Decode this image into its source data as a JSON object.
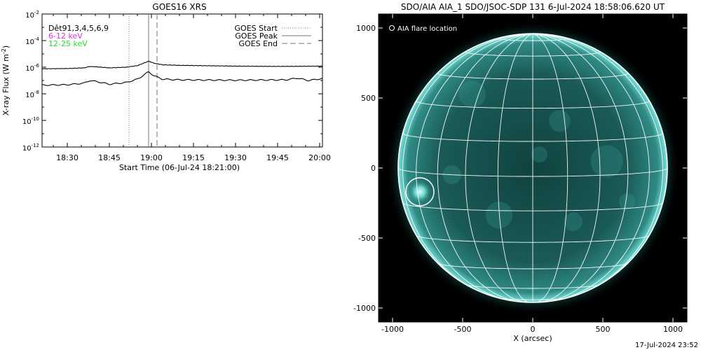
{
  "footer_timestamp": "17-Jul-2024 23:52",
  "chart_data": [
    {
      "type": "line",
      "title": "GOES16 XRS",
      "xlabel": "Start Time (06-Jul-24 18:21:00)",
      "ylabel": "X-ray Flux (W m",
      "ylabel_sup": "-2",
      "ylabel_close": ")",
      "y_scale": "log",
      "ylim": [
        "1e-12",
        "1e-2"
      ],
      "xlim": [
        "18:21",
        "20:01"
      ],
      "y_ticks": [
        {
          "value": -2,
          "base": "10",
          "exp": "-2"
        },
        {
          "value": -4,
          "base": "10",
          "exp": "-4"
        },
        {
          "value": -6,
          "base": "10",
          "exp": "-6"
        },
        {
          "value": -8,
          "base": "10",
          "exp": "-8"
        },
        {
          "value": -10,
          "base": "10",
          "exp": "-10"
        },
        {
          "value": -12,
          "base": "10",
          "exp": "-12"
        }
      ],
      "x_ticks": [
        "18:30",
        "18:45",
        "19:00",
        "19:15",
        "19:30",
        "19:45",
        "20:00"
      ],
      "detector_label": "Dêt91,3,4,5,6,9",
      "legend": {
        "placement": "top-right",
        "entries": [
          {
            "label": "GOES Start",
            "style": "dotted"
          },
          {
            "label": "GOES Peak",
            "style": "solid"
          },
          {
            "label": "GOES End",
            "style": "dashed"
          }
        ]
      },
      "markers": {
        "start": "18:52",
        "peak": "18:59",
        "end": "19:02"
      },
      "series": [
        {
          "name": "6-12 keV",
          "color": "#e030e0",
          "points": [
            [
              "18:21",
              -6.12
            ],
            [
              "18:30",
              -6.1
            ],
            [
              "18:36",
              -6.05
            ],
            [
              "18:38",
              -5.95
            ],
            [
              "18:41",
              -5.98
            ],
            [
              "18:45",
              -6.05
            ],
            [
              "18:51",
              -6.0
            ],
            [
              "18:55",
              -5.88
            ],
            [
              "18:59",
              -5.55
            ],
            [
              "19:01",
              -5.7
            ],
            [
              "19:04",
              -5.82
            ],
            [
              "19:10",
              -5.86
            ],
            [
              "19:30",
              -5.92
            ],
            [
              "19:45",
              -5.94
            ],
            [
              "20:01",
              -5.92
            ]
          ]
        },
        {
          "name": "12-25 keV",
          "color": "#22dd22",
          "points": [
            [
              "18:21",
              -7.35
            ],
            [
              "18:30",
              -7.32
            ],
            [
              "18:36",
              -7.2
            ],
            [
              "18:38",
              -7.0
            ],
            [
              "18:41",
              -7.1
            ],
            [
              "18:45",
              -7.28
            ],
            [
              "18:51",
              -7.15
            ],
            [
              "18:55",
              -6.9
            ],
            [
              "18:59",
              -6.35
            ],
            [
              "19:01",
              -6.65
            ],
            [
              "19:04",
              -6.9
            ],
            [
              "19:10",
              -6.95
            ],
            [
              "19:30",
              -6.98
            ],
            [
              "19:48",
              -6.95
            ],
            [
              "19:52",
              -6.82
            ],
            [
              "19:56",
              -7.0
            ],
            [
              "20:01",
              -6.85
            ]
          ]
        }
      ]
    },
    {
      "type": "scatter",
      "title": "SDO/AIA AIA_1 SDO/JSOC-SDP 131  6-Jul-2024 18:58:06.620 UT",
      "xlabel": "X (arcsec)",
      "ylabel": "",
      "xlim": [
        -1100,
        1100
      ],
      "ylim": [
        -1100,
        1100
      ],
      "x_ticks": [
        -1000,
        -500,
        0,
        500,
        1000
      ],
      "y_ticks": [
        1000,
        500,
        0,
        -500,
        -1000
      ],
      "legend": {
        "placement": "top-left",
        "entries": [
          {
            "label": "AIA flare location",
            "marker": "circle"
          }
        ]
      },
      "solar_radius_arcsec": 960,
      "flare": {
        "x": -805,
        "y": -170
      },
      "colors": {
        "background": "#000000",
        "disk": "#1e6e6a",
        "limb": "#7ae6de",
        "grid": "#ffffff"
      }
    }
  ]
}
